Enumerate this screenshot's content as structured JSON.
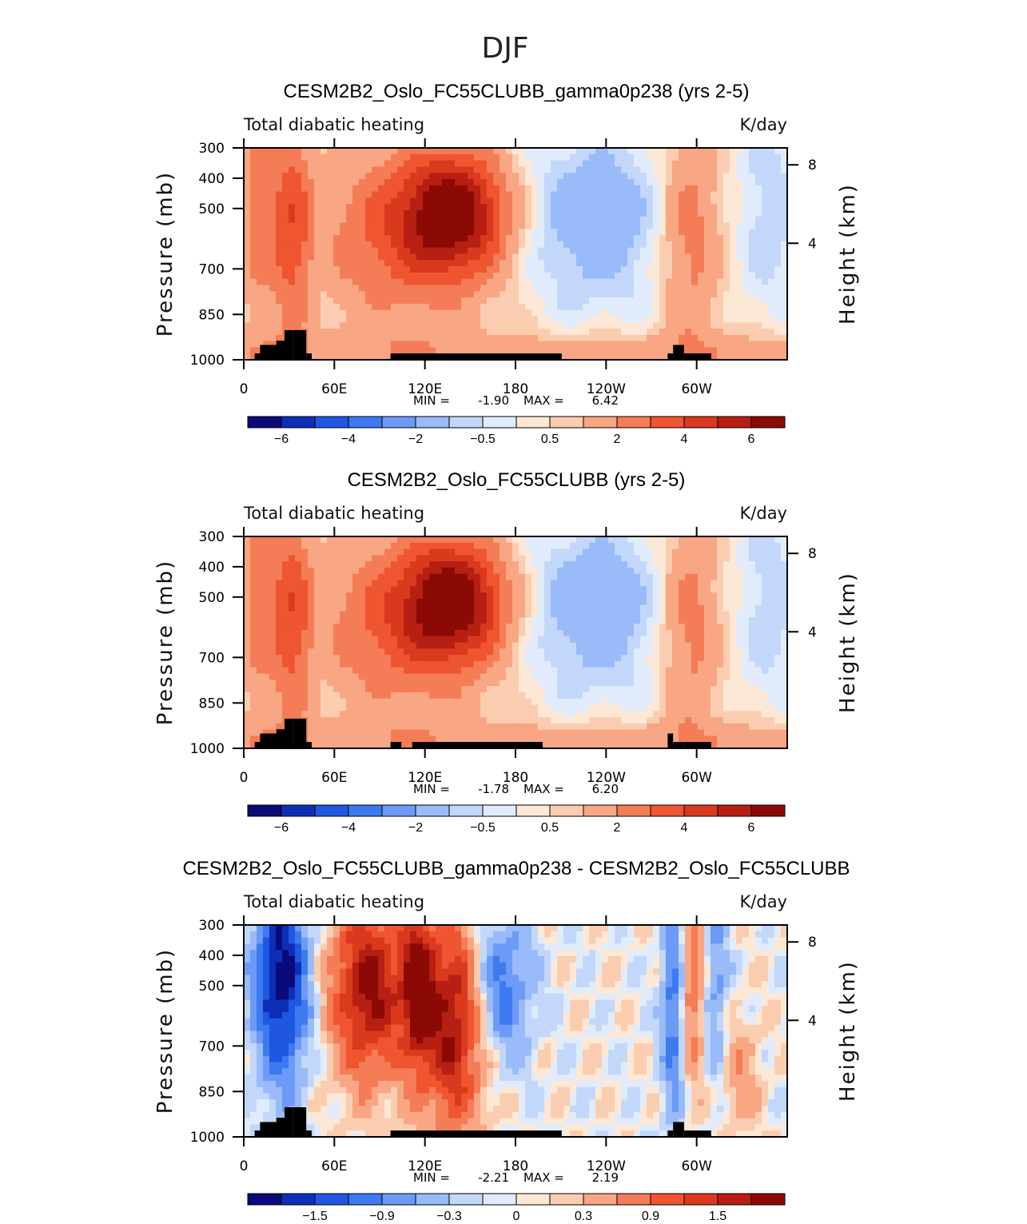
{
  "figure_title": "DJF",
  "chart_data": [
    {
      "type": "heatmap",
      "title": "CESM2B2_Oslo_FC55CLUBB_gamma0p238 (yrs 2-5)",
      "left_label": "Total diabatic heating",
      "right_label": "K/day",
      "ylabel": "Pressure (mb)",
      "y2label": "Height (km)",
      "xticks": [
        "0",
        "60E",
        "120E",
        "180",
        "120W",
        "60W"
      ],
      "yticks": [
        "300",
        "400",
        "500",
        "700",
        "850",
        "1000"
      ],
      "y2ticks": [
        "8",
        "4"
      ],
      "stats": {
        "min_label": "MIN =",
        "min": "-1.90",
        "max_label": "MAX =",
        "max": "6.42"
      },
      "colorbar_labels": [
        "-6",
        "-4",
        "-2",
        "-0.5",
        "0.5",
        "2",
        "4",
        "6"
      ],
      "field": "full",
      "field_min": -1.9,
      "field_max": 6.42
    },
    {
      "type": "heatmap",
      "title": "CESM2B2_Oslo_FC55CLUBB (yrs 2-5)",
      "left_label": "Total diabatic heating",
      "right_label": "K/day",
      "ylabel": "Pressure (mb)",
      "y2label": "Height (km)",
      "xticks": [
        "0",
        "60E",
        "120E",
        "180",
        "120W",
        "60W"
      ],
      "yticks": [
        "300",
        "400",
        "500",
        "700",
        "850",
        "1000"
      ],
      "y2ticks": [
        "8",
        "4"
      ],
      "stats": {
        "min_label": "MIN =",
        "min": "-1.78",
        "max_label": "MAX =",
        "max": "6.20"
      },
      "colorbar_labels": [
        "-6",
        "-4",
        "-2",
        "-0.5",
        "0.5",
        "2",
        "4",
        "6"
      ],
      "field": "full",
      "field_min": -1.78,
      "field_max": 6.2
    },
    {
      "type": "heatmap",
      "title": "CESM2B2_Oslo_FC55CLUBB_gamma0p238 - CESM2B2_Oslo_FC55CLUBB",
      "left_label": "Total diabatic heating",
      "right_label": "K/day",
      "ylabel": "Pressure (mb)",
      "y2label": "Height (km)",
      "xticks": [
        "0",
        "60E",
        "120E",
        "180",
        "120W",
        "60W"
      ],
      "yticks": [
        "300",
        "400",
        "500",
        "700",
        "850",
        "1000"
      ],
      "y2ticks": [
        "8",
        "4"
      ],
      "stats": {
        "min_label": "MIN =",
        "min": "-2.21",
        "max_label": "MAX =",
        "max": "2.19"
      },
      "colorbar_labels": [
        "-1.5",
        "-0.9",
        "-0.3",
        "0",
        "0.3",
        "0.9",
        "1.5"
      ],
      "field": "diff",
      "field_min": -2.21,
      "field_max": 2.19
    }
  ],
  "colorbar_colors": [
    "#0a0a7a",
    "#0d2fb8",
    "#1f57e0",
    "#3d7af0",
    "#6b9af7",
    "#99bbf9",
    "#c2d7fa",
    "#e0ecfb",
    "#fde8d6",
    "#fbcdb0",
    "#f8a683",
    "#f47c56",
    "#ef5530",
    "#d93a1e",
    "#b71f12",
    "#8b0a06"
  ],
  "topography_color": "#000000"
}
